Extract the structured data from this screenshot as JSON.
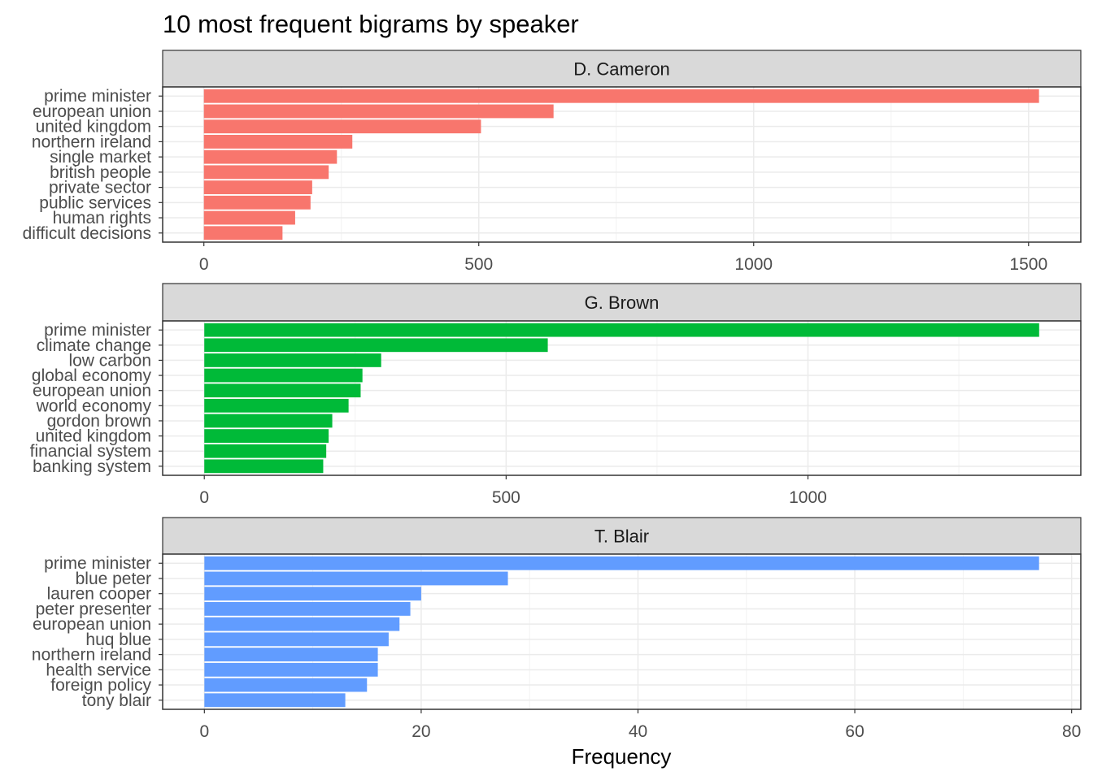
{
  "chart_data": {
    "type": "bar",
    "orientation": "horizontal",
    "title": "10 most frequent bigrams by speaker",
    "xlabel": "Frequency",
    "ylabel": "",
    "grid": true,
    "legend": "none",
    "facets": [
      {
        "name": "D. Cameron",
        "color": "#F8766D",
        "xlim": [
          -75,
          1595
        ],
        "ticks": [
          0,
          500,
          1000,
          1500
        ],
        "tick_labels": [
          "0",
          "500",
          "1000",
          "1500"
        ],
        "categories": [
          "prime minister",
          "european union",
          "united kingdom",
          "northern ireland",
          "single market",
          "british people",
          "private sector",
          "public services",
          "human rights",
          "difficult decisions"
        ],
        "values": [
          1519,
          636,
          504,
          270,
          242,
          227,
          197,
          194,
          166,
          143
        ]
      },
      {
        "name": "G. Brown",
        "color": "#00BA38",
        "xlim": [
          -69,
          1452
        ],
        "ticks": [
          0,
          500,
          1000
        ],
        "tick_labels": [
          "0",
          "500",
          "1000"
        ],
        "categories": [
          "prime minister",
          "climate change",
          "low carbon",
          "global economy",
          "european union",
          "world economy",
          "gordon brown",
          "united kingdom",
          "financial system",
          "banking system"
        ],
        "values": [
          1383,
          569,
          293,
          262,
          259,
          239,
          212,
          206,
          202,
          197
        ]
      },
      {
        "name": "T. Blair",
        "color": "#619CFF",
        "xlim": [
          -3.85,
          80.85
        ],
        "ticks": [
          0,
          20,
          40,
          60,
          80
        ],
        "tick_labels": [
          "0",
          "20",
          "40",
          "60",
          "80"
        ],
        "categories": [
          "prime minister",
          "blue peter",
          "lauren cooper",
          "peter presenter",
          "european union",
          "huq blue",
          "northern ireland",
          "health service",
          "foreign policy",
          "tony blair"
        ],
        "values": [
          77,
          28,
          20,
          19,
          18,
          17,
          16,
          16,
          15,
          13
        ]
      }
    ]
  }
}
